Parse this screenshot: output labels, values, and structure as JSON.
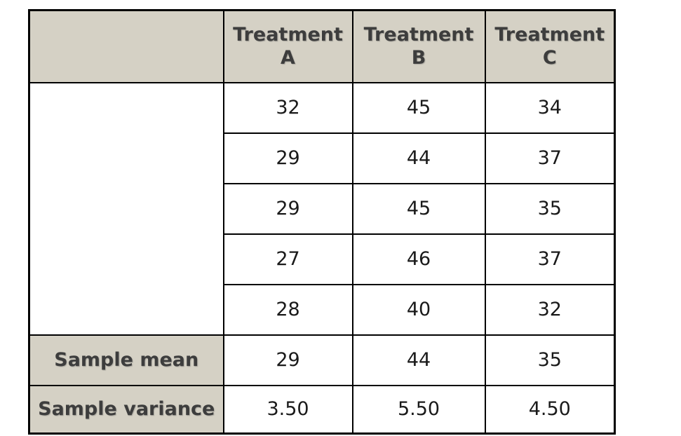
{
  "chart_data": {
    "type": "table",
    "title": "",
    "corner_label": "",
    "headers": [
      "Treatment A",
      "Treatment B",
      "Treatment C"
    ],
    "data_rows": [
      [
        "32",
        "45",
        "34"
      ],
      [
        "29",
        "44",
        "37"
      ],
      [
        "29",
        "45",
        "35"
      ],
      [
        "27",
        "46",
        "37"
      ],
      [
        "28",
        "40",
        "32"
      ]
    ],
    "summary": [
      {
        "label": "Sample mean",
        "values": [
          "29",
          "44",
          "35"
        ]
      },
      {
        "label": "Sample variance",
        "values": [
          "3.50",
          "5.50",
          "4.50"
        ]
      }
    ],
    "series": [
      {
        "name": "Treatment A",
        "values": [
          32,
          29,
          29,
          27,
          28
        ],
        "sample_mean": 29,
        "sample_variance": 3.5
      },
      {
        "name": "Treatment B",
        "values": [
          45,
          44,
          45,
          46,
          40
        ],
        "sample_mean": 44,
        "sample_variance": 5.5
      },
      {
        "name": "Treatment C",
        "values": [
          34,
          37,
          35,
          37,
          32
        ],
        "sample_mean": 35,
        "sample_variance": 4.5
      }
    ]
  },
  "colors": {
    "header_background": "#d5d1c5",
    "header_text": "#3d3d3d",
    "value_text": "#1a1a1a",
    "border": "#000000",
    "page_background": "#ffffff"
  }
}
